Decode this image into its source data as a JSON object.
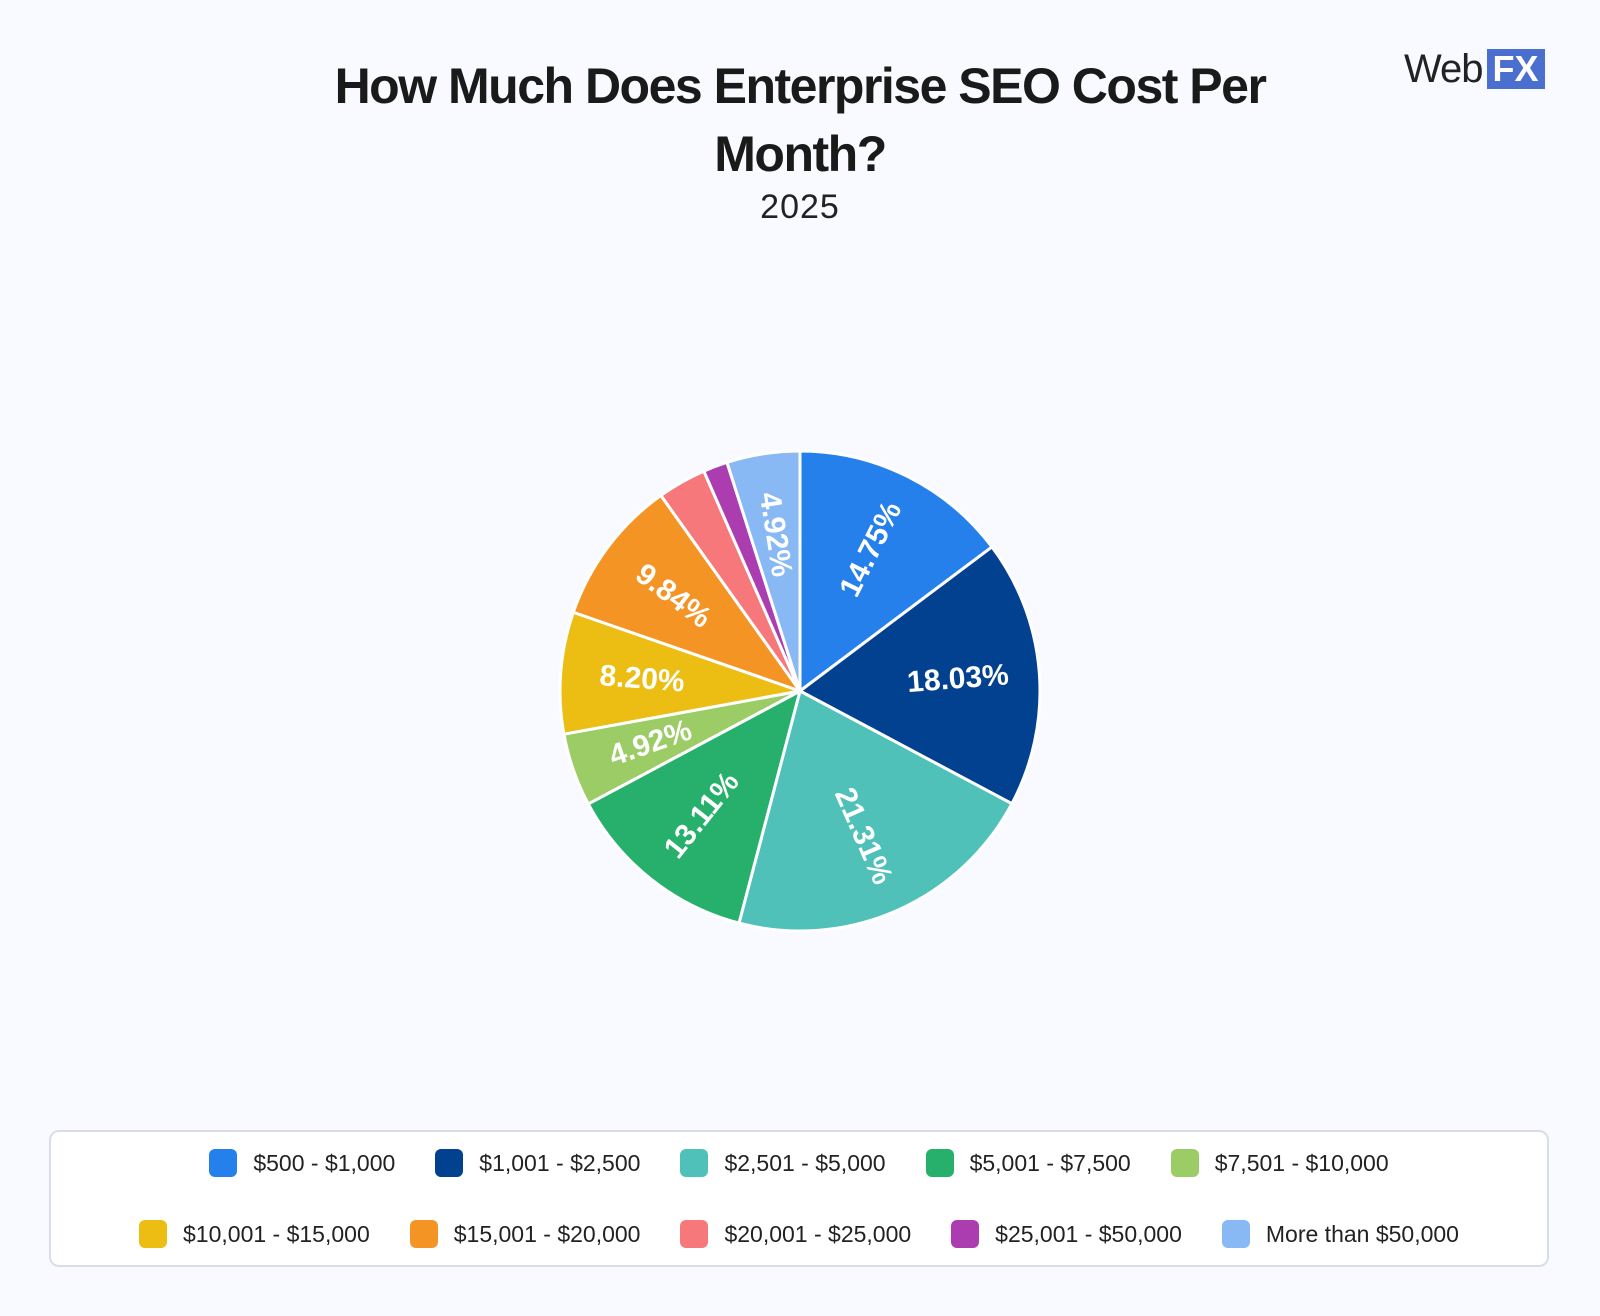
{
  "header": {
    "title": "How Much Does Enterprise SEO Cost Per Month?",
    "subtitle": "2025",
    "logo_text": "Web",
    "logo_badge": "FX"
  },
  "chart_data": {
    "type": "pie",
    "title": "How Much Does Enterprise SEO Cost Per Month?",
    "subtitle": "2025",
    "legend_position": "bottom",
    "slices": [
      {
        "label": "$500 - $1,000",
        "value": 14.75,
        "display": "14.75%",
        "color": "#2680eb"
      },
      {
        "label": "$1,001 - $2,500",
        "value": 18.03,
        "display": "18.03%",
        "color": "#02418f"
      },
      {
        "label": "$2,501 - $5,000",
        "value": 21.31,
        "display": "21.31%",
        "color": "#4fc1b9"
      },
      {
        "label": "$5,001 - $7,500",
        "value": 13.11,
        "display": "13.11%",
        "color": "#27b06b"
      },
      {
        "label": "$7,501 - $10,000",
        "value": 4.92,
        "display": "4.92%",
        "color": "#9ccc65"
      },
      {
        "label": "$10,001 - $15,000",
        "value": 8.2,
        "display": "8.20%",
        "color": "#ecbd13"
      },
      {
        "label": "$15,001 - $20,000",
        "value": 9.84,
        "display": "9.84%",
        "color": "#f49425"
      },
      {
        "label": "$20,001 - $25,000",
        "value": 3.28,
        "display": "",
        "color": "#f7787a"
      },
      {
        "label": "$25,001 - $50,000",
        "value": 1.64,
        "display": "",
        "color": "#ab3db1"
      },
      {
        "label": "More than $50,000",
        "value": 4.92,
        "display": "4.92%",
        "color": "#88b9f5"
      }
    ]
  }
}
